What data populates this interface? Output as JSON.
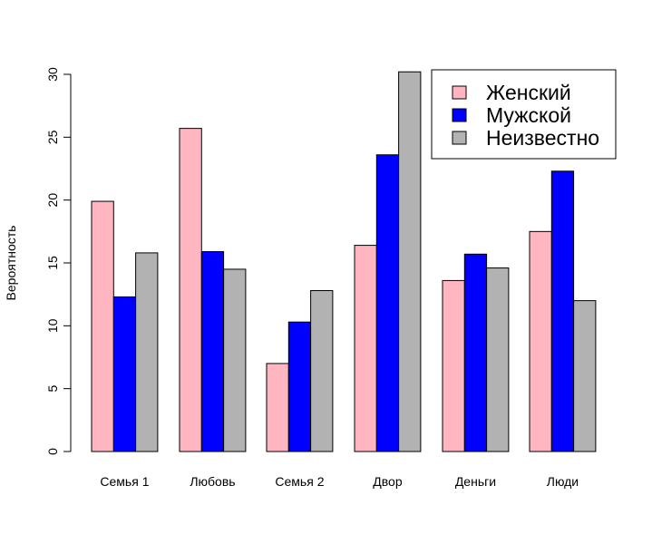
{
  "chart_data": {
    "type": "bar",
    "title": "",
    "xlabel": "",
    "ylabel": "Вероятность",
    "ylim": [
      0,
      30
    ],
    "yticks": [
      0,
      5,
      10,
      15,
      20,
      25,
      30
    ],
    "grid": false,
    "legend_position": "top-right",
    "categories": [
      "Семья 1",
      "Любовь",
      "Семья 2",
      "Двор",
      "Деньги",
      "Люди"
    ],
    "series": [
      {
        "name": "Женский",
        "color": "#FFB6C1",
        "values": [
          19.9,
          25.7,
          7.0,
          16.4,
          13.6,
          17.5
        ]
      },
      {
        "name": "Мужской",
        "color": "#0000FF",
        "values": [
          12.3,
          15.9,
          10.3,
          23.6,
          15.7,
          22.3
        ]
      },
      {
        "name": "Неизвестно",
        "color": "#B2B2B2",
        "values": [
          15.8,
          14.5,
          12.8,
          30.2,
          14.6,
          12.0
        ]
      }
    ]
  }
}
